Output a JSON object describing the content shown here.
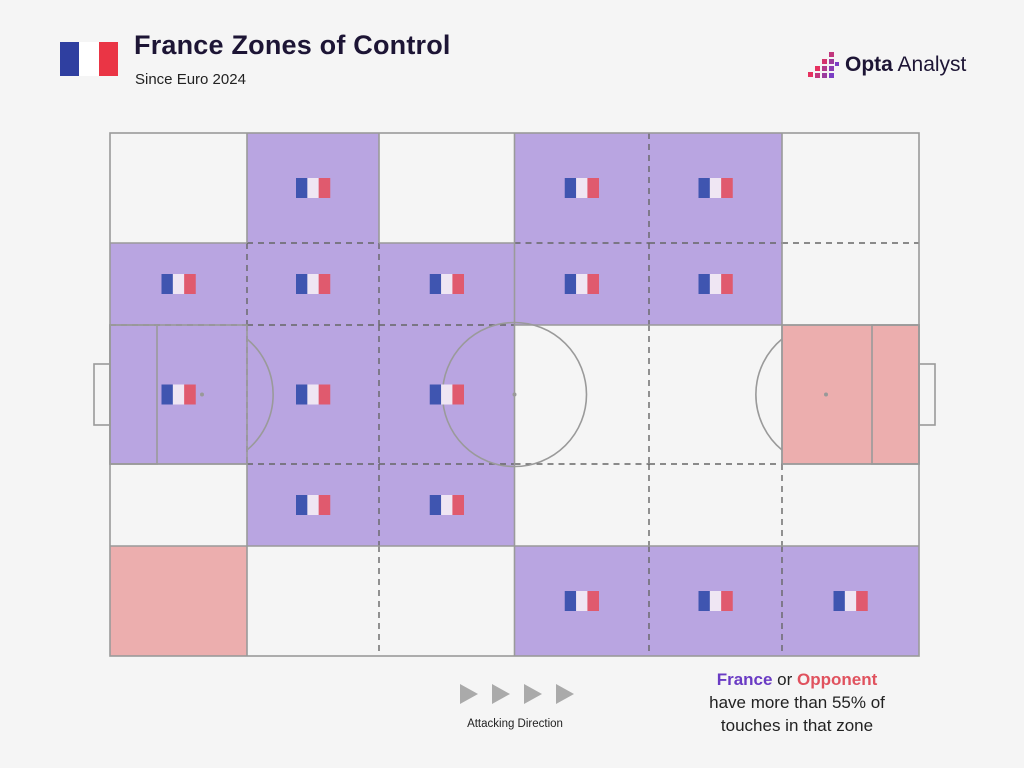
{
  "header": {
    "title": "France Zones of Control",
    "subtitle": "Since Euro 2024",
    "flag_colors": [
      "#2f3fa0",
      "#ffffff",
      "#ea3545"
    ]
  },
  "logo": {
    "brand_bold": "Opta",
    "brand_light": " Analyst",
    "accent_colors": [
      "#e6315f",
      "#7b3fc4"
    ]
  },
  "chart_data": {
    "type": "heatmap",
    "title": "France Zones of Control",
    "subtitle": "Since Euro 2024",
    "x_zones": 6,
    "y_zones": 5,
    "rows": [
      [
        "none",
        "France",
        "none",
        "France",
        "France",
        "none"
      ],
      [
        "France",
        "France",
        "France",
        "France",
        "France",
        "none"
      ],
      [
        "France",
        "France",
        "France",
        "none",
        "none",
        "Opponent"
      ],
      [
        "none",
        "France",
        "France",
        "none",
        "none",
        "none"
      ],
      [
        "Opponent",
        "none",
        "none",
        "France",
        "France",
        "France"
      ]
    ],
    "colors": {
      "France": "#b9a5e1",
      "Opponent": "#ecaeae",
      "none": "#f5f5f5",
      "lines": "#9a9a9a",
      "mini_flag": [
        "#3f55b0",
        "#efe6f3",
        "#e05a6e"
      ]
    },
    "legend": {
      "france": "France",
      "or": " or ",
      "opponent": "Opponent",
      "line2": "have more than 55% of",
      "line3": "touches in that zone"
    },
    "direction_label": "Attacking Direction"
  }
}
